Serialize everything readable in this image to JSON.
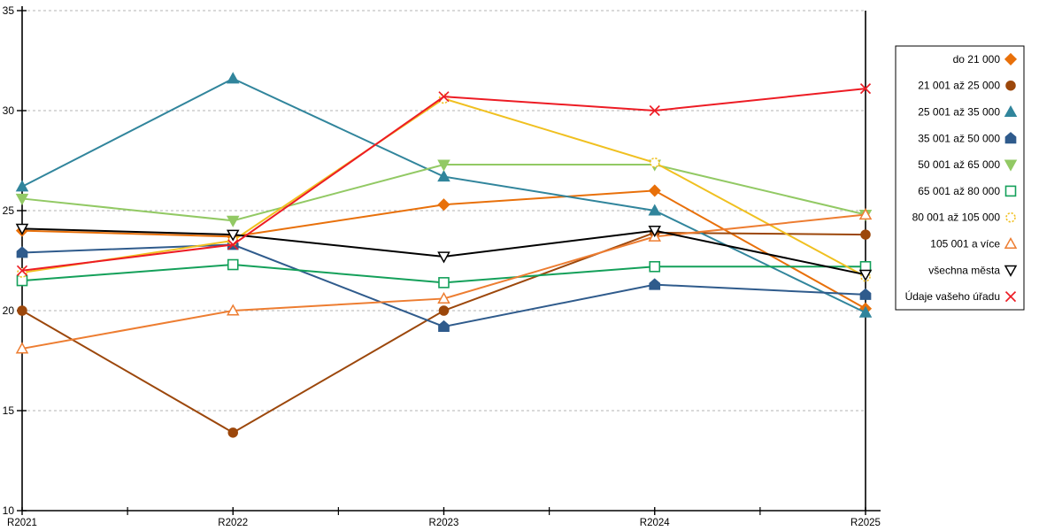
{
  "chart_data": {
    "type": "line",
    "title": "",
    "xlabel": "",
    "ylabel": "",
    "categories": [
      "R2021",
      "R2022",
      "R2023",
      "R2024",
      "R2025"
    ],
    "ylim": [
      10,
      35
    ],
    "y_ticks": [
      10,
      15,
      20,
      25,
      30,
      35
    ],
    "grid": "horizontal-dashed",
    "legend_position": "right-box",
    "series": [
      {
        "name": "do 21 000",
        "color": "#e8700a",
        "marker": "diamond",
        "filled": true,
        "values": [
          24.0,
          23.7,
          25.3,
          26.0,
          20.1
        ]
      },
      {
        "name": "21 001 až 25 000",
        "color": "#9c470b",
        "marker": "circle",
        "filled": true,
        "values": [
          20.0,
          13.9,
          20.0,
          23.9,
          23.8
        ]
      },
      {
        "name": "25 001 až 35 000",
        "color": "#31859c",
        "marker": "triangle-up",
        "filled": true,
        "values": [
          26.2,
          31.6,
          26.7,
          25.0,
          19.9
        ]
      },
      {
        "name": "35 001 až 50 000",
        "color": "#2f5b8c",
        "marker": "pentagon",
        "filled": true,
        "values": [
          22.9,
          23.3,
          19.2,
          21.3,
          20.8
        ]
      },
      {
        "name": "50 001 až 65 000",
        "color": "#92c964",
        "marker": "triangle-down",
        "filled": true,
        "values": [
          25.6,
          24.5,
          27.3,
          27.3,
          24.8
        ]
      },
      {
        "name": "65 001 až 80 000",
        "color": "#14a05a",
        "marker": "square",
        "filled": false,
        "values": [
          21.5,
          22.3,
          21.4,
          22.2,
          22.2
        ]
      },
      {
        "name": "80 001 až 105 000",
        "color": "#f0c020",
        "marker": "circle-dotted",
        "filled": false,
        "values": [
          21.9,
          23.5,
          30.6,
          27.4,
          21.7
        ]
      },
      {
        "name": "105 001 a více",
        "color": "#ed7d31",
        "marker": "triangle-up",
        "filled": false,
        "values": [
          18.1,
          20.0,
          20.6,
          23.7,
          24.8
        ]
      },
      {
        "name": "všechna města",
        "color": "#000000",
        "marker": "triangle-down",
        "filled": false,
        "values": [
          24.1,
          23.8,
          22.7,
          24.0,
          21.8
        ]
      },
      {
        "name": "Údaje vašeho úřadu",
        "color": "#ed1c24",
        "marker": "x",
        "filled": false,
        "values": [
          22.0,
          23.3,
          30.7,
          30.0,
          31.1
        ]
      }
    ],
    "colors": {
      "gridline": "#b3b3b3",
      "axis": "#000000",
      "legend_border": "#000000",
      "background": "#ffffff"
    }
  }
}
